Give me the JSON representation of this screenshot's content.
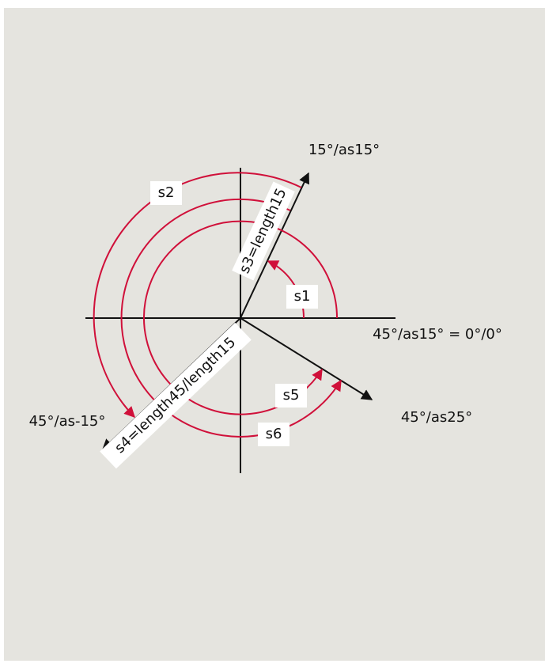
{
  "labels": {
    "top_arrow": "15°/as15°",
    "zero": "45°/as15° = 0°/0°",
    "left_arrow": "45°/as-15°",
    "right_arrow": "45°/as25°",
    "s1": "s1",
    "s2": "s2",
    "s3": "s3=length15",
    "s4": "s4=length45/length15",
    "s5": "s5",
    "s6": "s6"
  }
}
